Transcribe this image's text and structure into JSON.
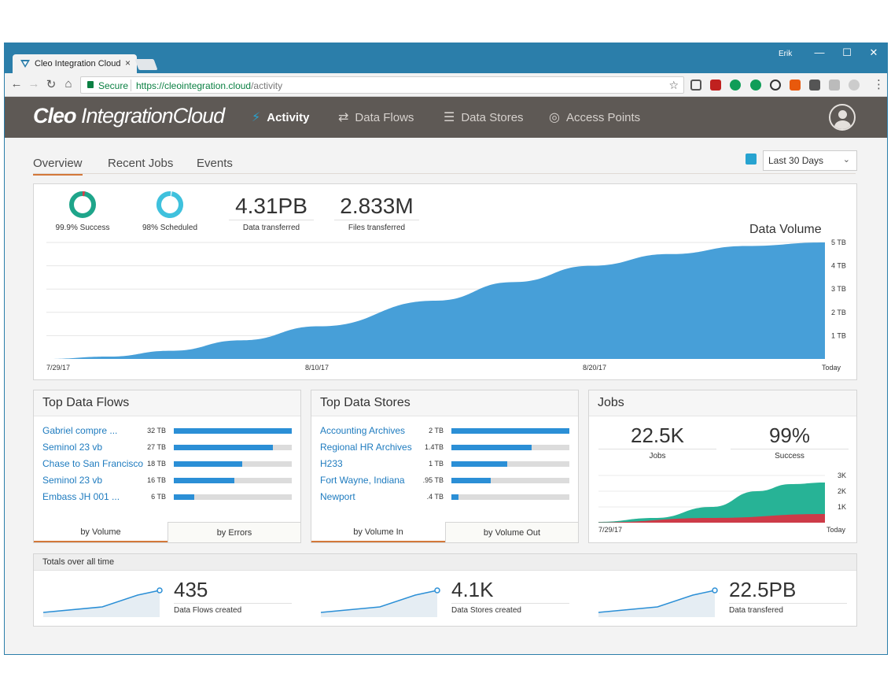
{
  "browser": {
    "tab_title": "Cleo Integration Cloud",
    "tab_close": "×",
    "user": "Erik",
    "minimize": "—",
    "maximize": "☐",
    "close": "✕",
    "secure_label": "Secure",
    "url_host": "https://cleointegration.cloud",
    "url_path": "/activity"
  },
  "app": {
    "logo_bold": "Cleo",
    "logo_light": "IntegrationCloud",
    "nav": [
      {
        "label": "Activity",
        "icon": "activity-icon"
      },
      {
        "label": "Data Flows",
        "icon": "data-flows-icon"
      },
      {
        "label": "Data Stores",
        "icon": "data-stores-icon"
      },
      {
        "label": "Access Points",
        "icon": "access-points-icon"
      }
    ]
  },
  "subtabs": [
    "Overview",
    "Recent Jobs",
    "Events"
  ],
  "date_range": "Last 30 Days",
  "overview": {
    "success_label": "99.9% Success",
    "success_fraction": 0.999,
    "scheduled_label": "98% Scheduled",
    "scheduled_fraction": 0.98,
    "data_transferred": "4.31PB",
    "data_transferred_label": "Data transferred",
    "files_transferred": "2.833M",
    "files_transferred_label": "Files transferred",
    "chart_title": "Data Volume"
  },
  "chart_data": [
    {
      "type": "area",
      "title": "Data Volume",
      "x_labels": [
        "7/29/17",
        "8/10/17",
        "8/20/17",
        "Today"
      ],
      "y_labels": [
        "5 TB",
        "4 TB",
        "3 TB",
        "2 TB",
        "1 TB"
      ],
      "ylim": [
        0,
        5
      ],
      "x": [
        0,
        0.08,
        0.16,
        0.25,
        0.35,
        0.5,
        0.6,
        0.7,
        0.8,
        0.9,
        1.0
      ],
      "values": [
        0,
        0.1,
        0.35,
        0.8,
        1.4,
        2.5,
        3.3,
        4.0,
        4.5,
        4.85,
        5.0
      ],
      "grid": true
    },
    {
      "type": "area",
      "title": "Jobs",
      "x_labels": [
        "7/29/17",
        "Today"
      ],
      "y_labels": [
        "3K",
        "2K",
        "1K"
      ],
      "ylim": [
        0,
        3
      ],
      "series": [
        {
          "color": "#27b396",
          "x": [
            0,
            0.25,
            0.5,
            0.7,
            0.85,
            1.0
          ],
          "values": [
            0.05,
            0.3,
            1.0,
            2.0,
            2.45,
            2.55
          ]
        },
        {
          "color": "#cd3b48",
          "x": [
            0,
            0.5,
            1.0
          ],
          "values": [
            0.02,
            0.3,
            0.55
          ]
        }
      ]
    }
  ],
  "top_flows": {
    "title": "Top Data Flows",
    "rows": [
      {
        "name": "Gabriel compre ...",
        "value": "32 TB",
        "fraction": 1.0
      },
      {
        "name": "Seminol 23 vb",
        "value": "27 TB",
        "fraction": 0.84
      },
      {
        "name": "Chase to San Francisco",
        "value": "18 TB",
        "fraction": 0.58
      },
      {
        "name": "Seminol 23 vb",
        "value": "16 TB",
        "fraction": 0.51
      },
      {
        "name": "Embass JH 001 ...",
        "value": "6 TB",
        "fraction": 0.17
      }
    ],
    "tab_a": "by Volume",
    "tab_b": "by Errors"
  },
  "top_stores": {
    "title": "Top Data Stores",
    "rows": [
      {
        "name": "Accounting Archives",
        "value": "2 TB",
        "fraction": 1.0
      },
      {
        "name": "Regional HR Archives",
        "value": "1.4TB",
        "fraction": 0.68
      },
      {
        "name": "H233",
        "value": "1 TB",
        "fraction": 0.47
      },
      {
        "name": "Fort Wayne, Indiana",
        "value": ".95 TB",
        "fraction": 0.33
      },
      {
        "name": "Newport",
        "value": ".4 TB",
        "fraction": 0.06
      }
    ],
    "tab_a": "by Volume In",
    "tab_b": "by Volume Out"
  },
  "jobs": {
    "title": "Jobs",
    "jobs_value": "22.5K",
    "jobs_label": "Jobs",
    "success_value": "99%",
    "success_label": "Success"
  },
  "totals": {
    "title": "Totals over all time",
    "items": [
      {
        "value": "435",
        "label": "Data Flows created"
      },
      {
        "value": "4.1K",
        "label": "Data Stores created"
      },
      {
        "value": "22.5PB",
        "label": "Data transfered"
      }
    ]
  }
}
